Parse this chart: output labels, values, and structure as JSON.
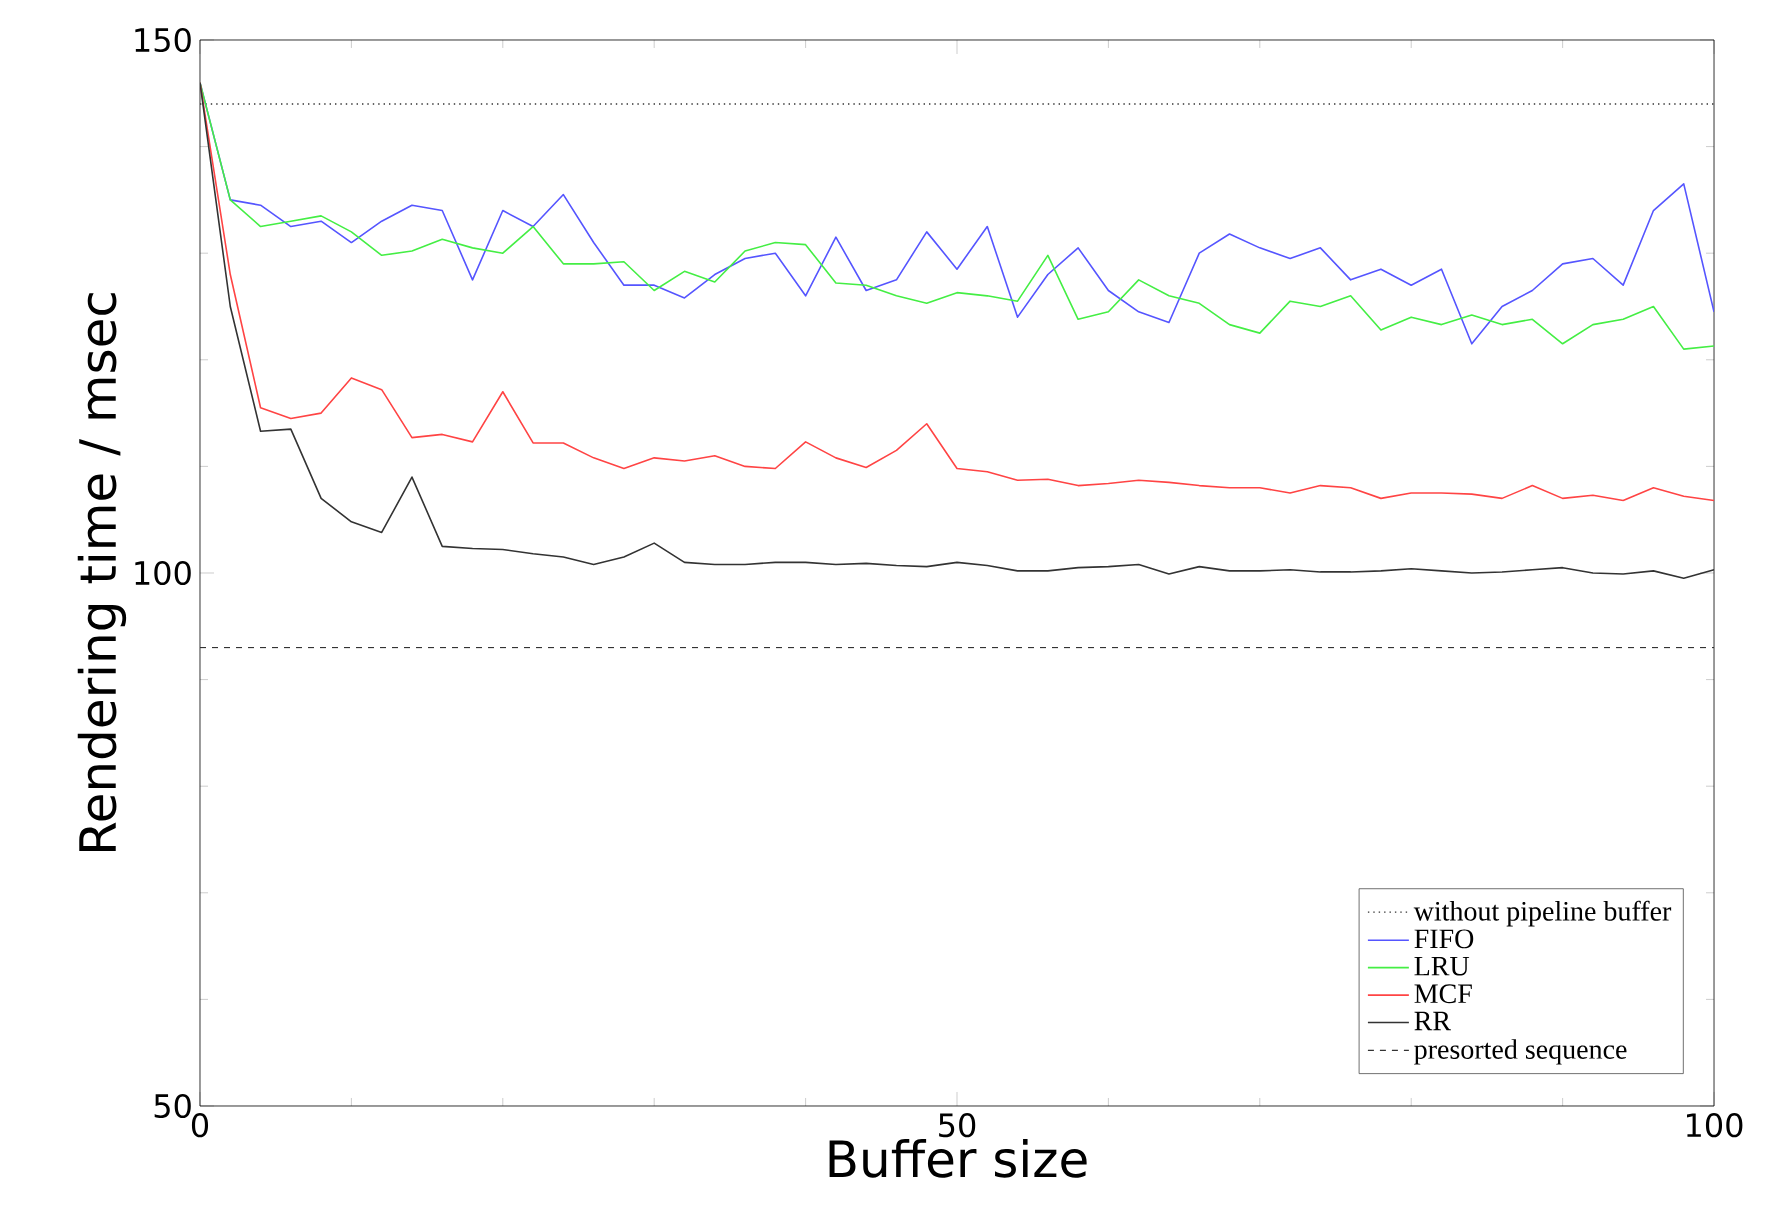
{
  "chart_data": {
    "type": "line",
    "xlabel": "Buffer size",
    "ylabel": "Rendering time / msec",
    "x": [
      0,
      2,
      4,
      6,
      8,
      10,
      12,
      14,
      16,
      18,
      20,
      22,
      24,
      26,
      28,
      30,
      32,
      34,
      36,
      38,
      40,
      42,
      44,
      46,
      48,
      50,
      52,
      54,
      56,
      58,
      60,
      62,
      64,
      66,
      68,
      70,
      72,
      74,
      76,
      78,
      80,
      82,
      84,
      86,
      88,
      90,
      92,
      94,
      96,
      98,
      100
    ],
    "series": [
      {
        "name": "FIFO",
        "color": "#5555ff",
        "values": [
          146,
          135,
          134.5,
          132.5,
          133,
          131,
          133,
          134.5,
          134,
          127.5,
          134,
          132.5,
          135.5,
          131,
          127,
          127,
          125.8,
          128,
          129.5,
          130,
          126,
          131.5,
          126.5,
          127.5,
          132,
          128.5,
          132.5,
          124,
          128,
          130.5,
          126.5,
          124.5,
          123.5,
          130,
          131.8,
          130.5,
          129.5,
          130.5,
          127.5,
          128.5,
          127,
          128.5,
          121.5,
          125,
          126.5,
          129,
          129.5,
          127,
          134,
          136.5,
          124.5
        ]
      },
      {
        "name": "LRU",
        "color": "#44ee44",
        "values": [
          146,
          135,
          132.5,
          133,
          133.5,
          132,
          129.8,
          130.2,
          131.3,
          130.5,
          130,
          132.5,
          129,
          129,
          129.2,
          126.5,
          128.3,
          127.3,
          130.2,
          131,
          130.8,
          127.2,
          127,
          126,
          125.3,
          126.3,
          126,
          125.5,
          129.8,
          123.8,
          124.5,
          127.5,
          126,
          125.3,
          123.3,
          122.5,
          125.5,
          125,
          126,
          122.8,
          124,
          123.3,
          124.2,
          123.3,
          123.8,
          121.5,
          123.3,
          123.8,
          125,
          121,
          121.3
        ]
      },
      {
        "name": "MCF",
        "color": "#ff4444",
        "values": [
          146,
          128,
          115.5,
          114.5,
          115,
          118.3,
          117.2,
          112.7,
          113,
          112.3,
          117,
          112.2,
          112.2,
          110.8,
          109.8,
          110.8,
          110.5,
          111,
          110,
          109.8,
          112.3,
          110.8,
          109.9,
          111.5,
          114,
          109.8,
          109.5,
          108.7,
          108.8,
          108.2,
          108.4,
          108.7,
          108.5,
          108.2,
          108,
          108,
          107.5,
          108.2,
          108,
          107,
          107.5,
          107.5,
          107.4,
          107,
          108.2,
          107,
          107.3,
          106.8,
          108,
          107.2,
          106.8
        ]
      },
      {
        "name": "RR",
        "color": "#333333",
        "values": [
          146,
          125,
          113.3,
          113.5,
          107,
          104.8,
          103.8,
          109,
          102.5,
          102.3,
          102.2,
          101.8,
          101.5,
          100.8,
          101.5,
          102.8,
          101,
          100.8,
          100.8,
          101,
          101,
          100.8,
          100.9,
          100.7,
          100.6,
          101,
          100.7,
          100.2,
          100.2,
          100.5,
          100.6,
          100.8,
          99.9,
          100.6,
          100.2,
          100.2,
          100.3,
          100.1,
          100.1,
          100.2,
          100.4,
          100.2,
          100,
          100.1,
          100.3,
          100.5,
          100,
          99.9,
          100.2,
          99.5,
          100.3
        ]
      }
    ],
    "ref_lines": [
      {
        "axis": "y",
        "value": 144,
        "label": "without pipeline buffer",
        "color": "#333333",
        "line_style": "dotted"
      },
      {
        "axis": "y",
        "value": 93,
        "label": "presorted sequence",
        "color": "#333333",
        "line_style": "dashed"
      }
    ],
    "xlim": [
      0,
      100
    ],
    "ylim": [
      50,
      150
    ],
    "xticks": [
      0,
      50,
      100
    ],
    "yticks": [
      50,
      100,
      150
    ],
    "legend": "bottom right",
    "marker": "none",
    "line_style": "solid"
  }
}
